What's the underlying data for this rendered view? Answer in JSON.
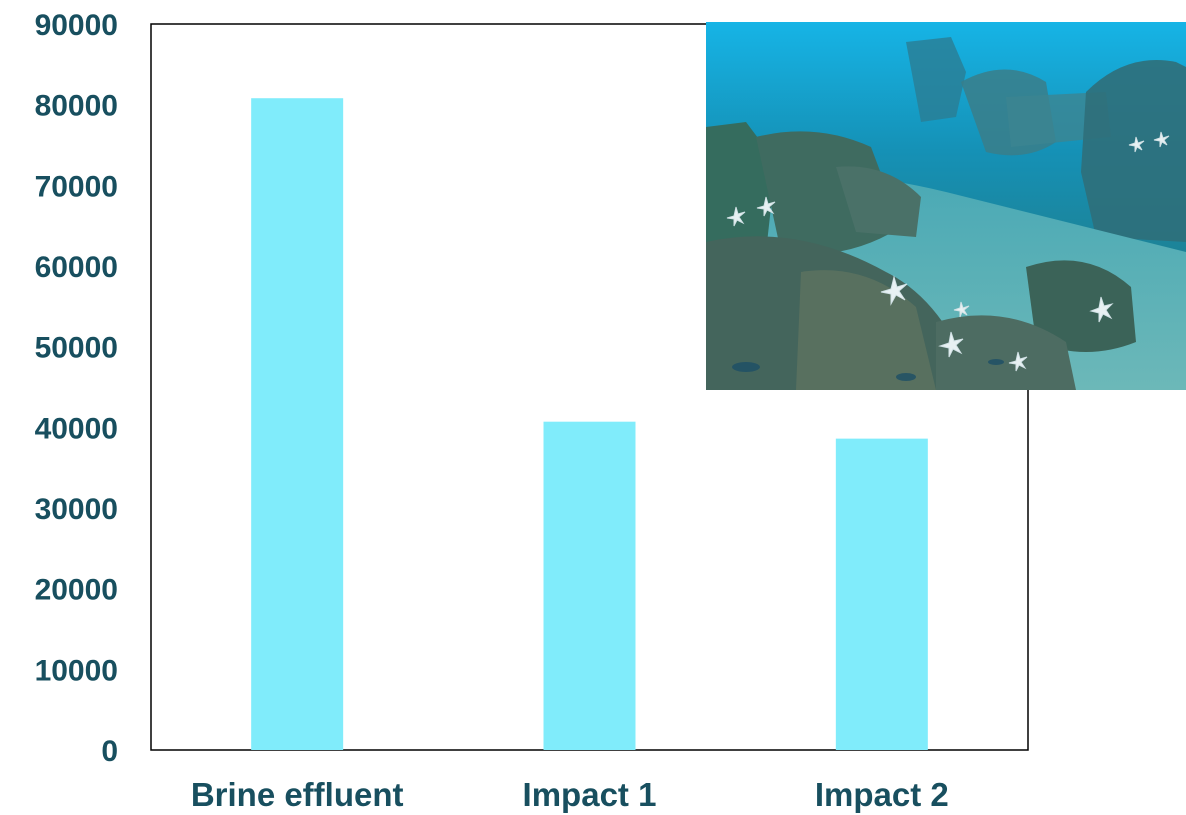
{
  "chart_data": {
    "type": "bar",
    "title": "",
    "xlabel": "",
    "ylabel": "",
    "categories": [
      "Brine effluent",
      "Impact 1",
      "Impact 2"
    ],
    "values": [
      80800,
      40700,
      38600
    ],
    "ylim": [
      0,
      90000
    ],
    "yticks": [
      "0",
      "10000",
      "20000",
      "30000",
      "40000",
      "50000",
      "60000",
      "70000",
      "80000",
      "90000"
    ],
    "grid": false,
    "legend": "none"
  },
  "colors": {
    "bar": "#80ecfb",
    "text": "#184f5f",
    "axis": "#000000"
  },
  "inset_image": {
    "icon": "underwater-photo-starfish-seafloor"
  }
}
